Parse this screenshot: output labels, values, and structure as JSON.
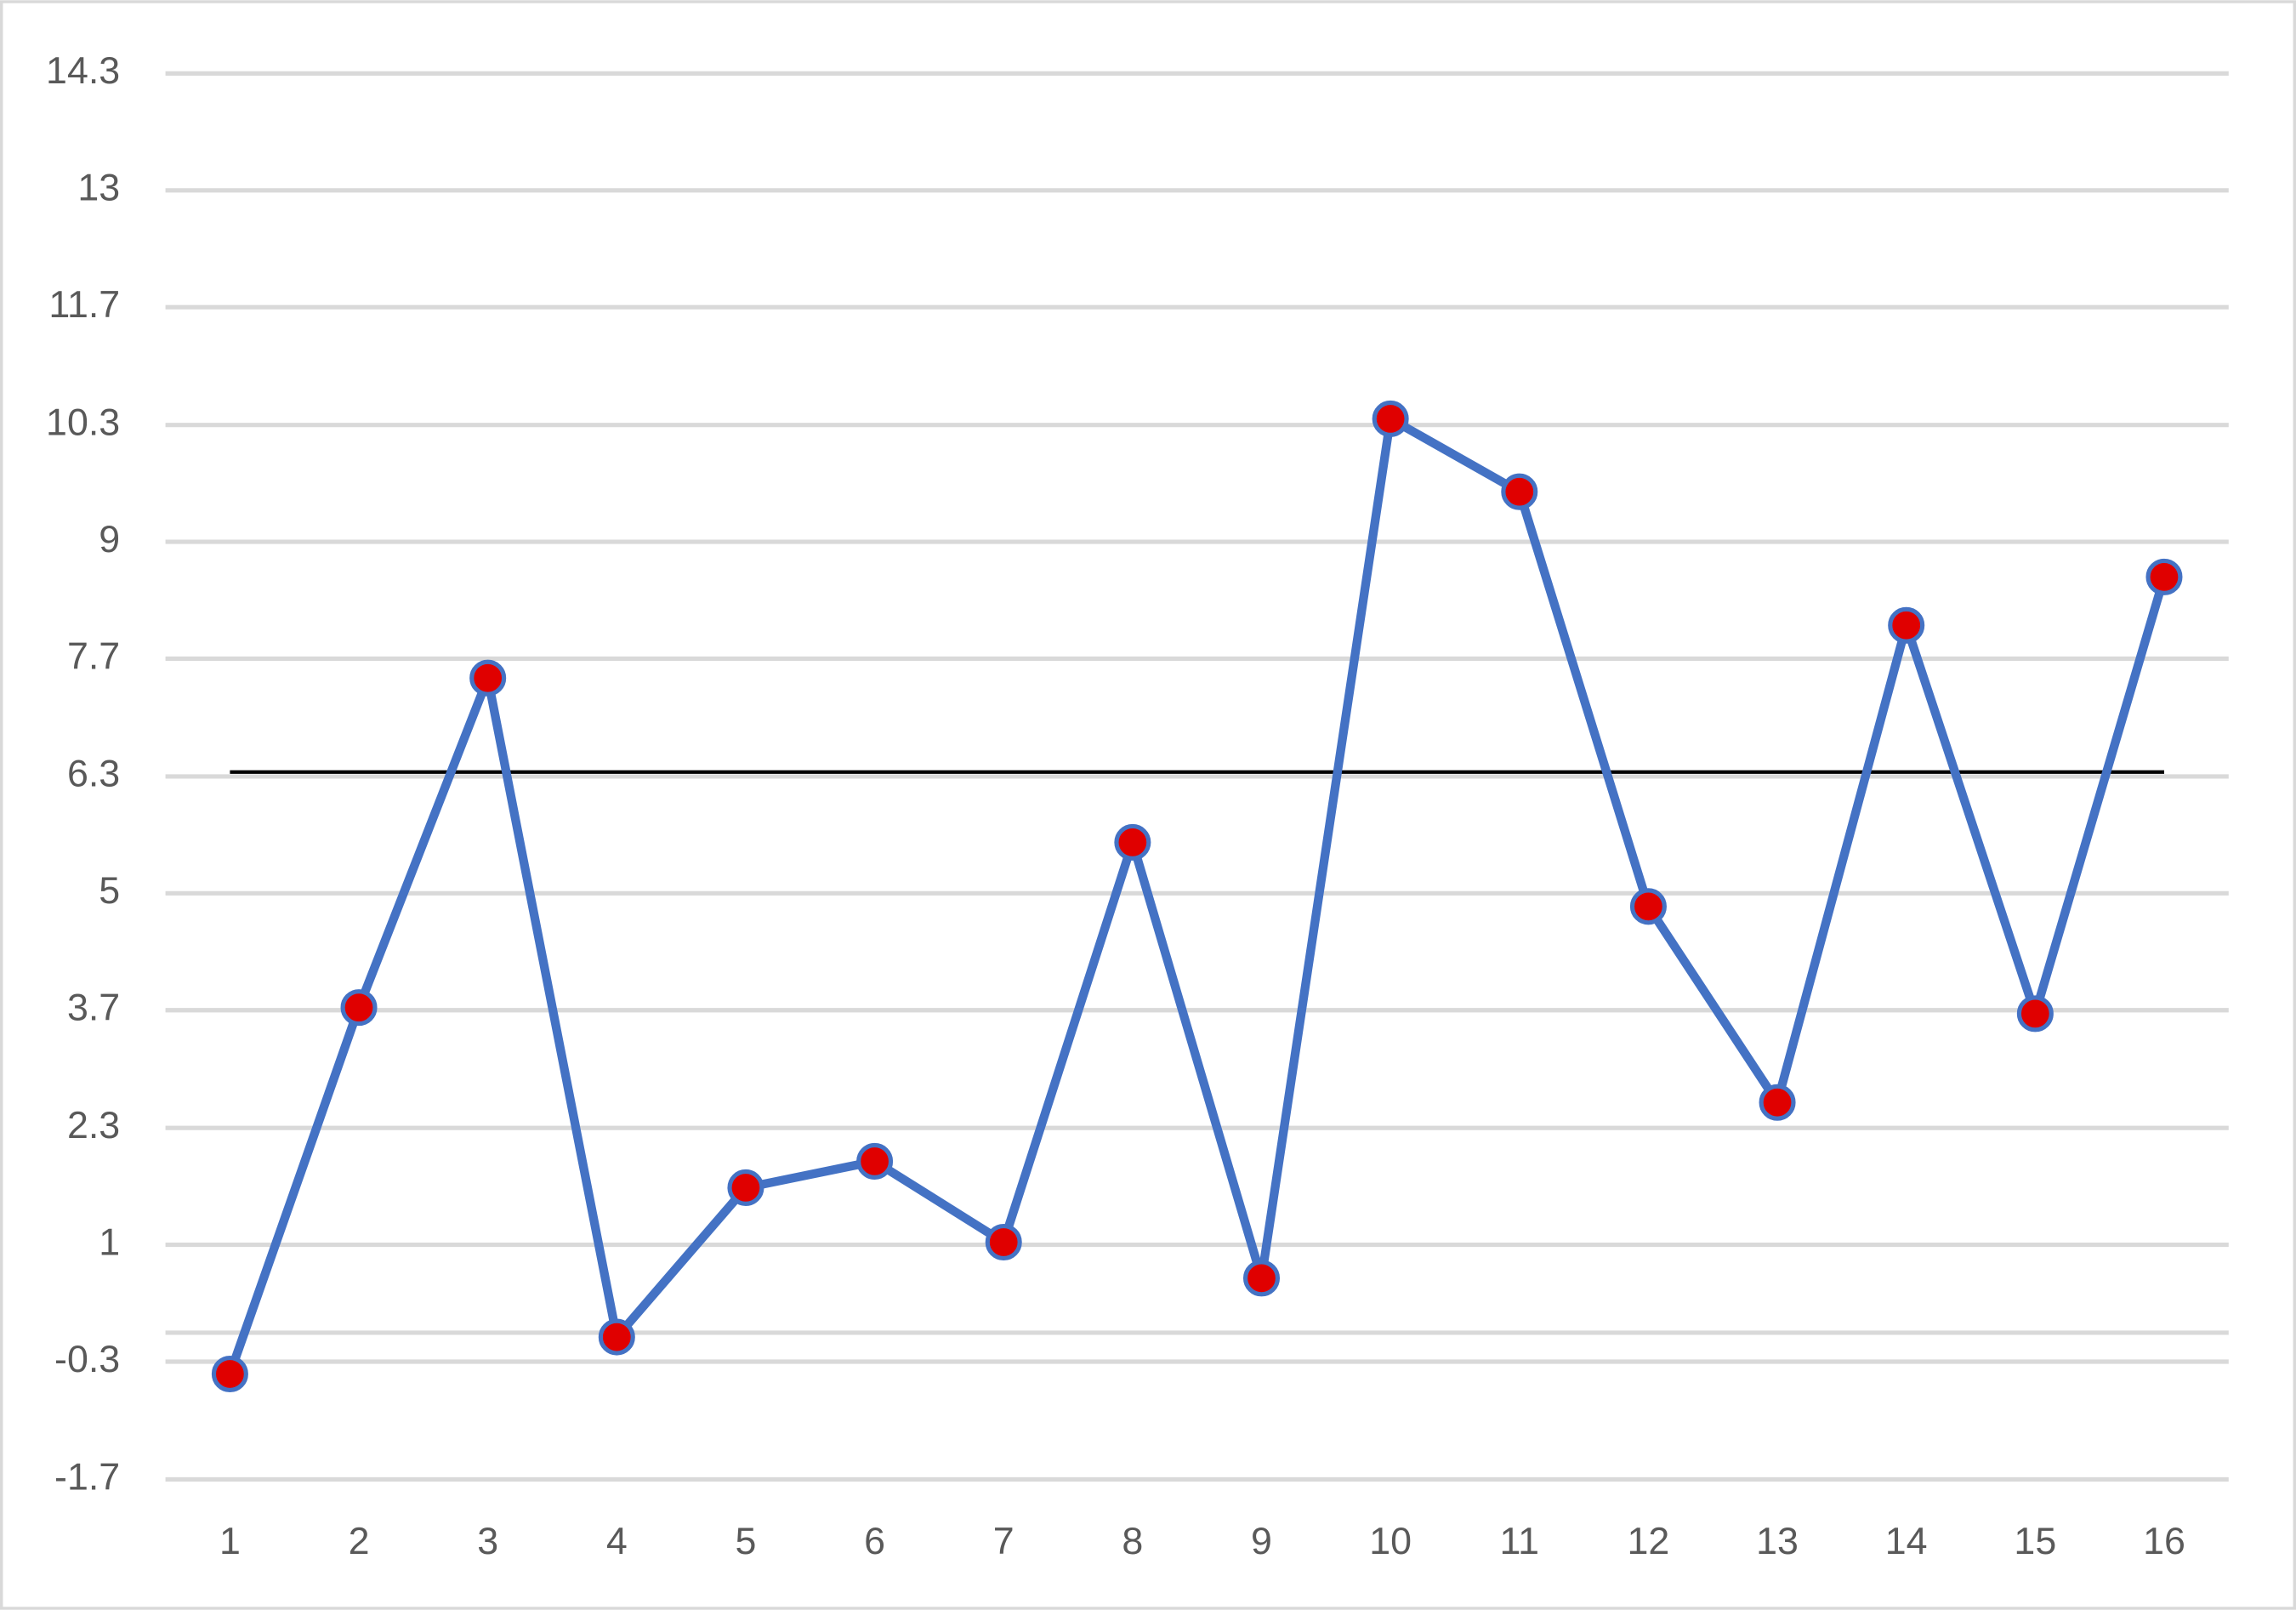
{
  "chart_data": {
    "type": "line",
    "categories": [
      "1",
      "2",
      "3",
      "4",
      "5",
      "6",
      "7",
      "8",
      "9",
      "10",
      "11",
      "12",
      "13",
      "14",
      "15",
      "16"
    ],
    "series": [
      {
        "color": "#4472c4",
        "marker_color": "#e00000",
        "values": [
          -0.47,
          3.7,
          7.45,
          -0.05,
          1.65,
          1.95,
          1.03,
          5.58,
          0.62,
          10.4,
          9.57,
          4.85,
          2.62,
          8.05,
          3.63,
          8.6
        ]
      }
    ],
    "reference_line": {
      "value": 6.38,
      "color": "#000000"
    },
    "ylim": [
      -1.67,
      14.33
    ],
    "yticks": [
      {
        "value": -1.67,
        "label": "-1.7"
      },
      {
        "value": -0.33,
        "label": "-0.3"
      },
      1.0,
      {
        "value": 2.33,
        "label": "2.3"
      },
      {
        "value": 3.67,
        "label": "3.7"
      },
      5.0,
      {
        "value": 6.33,
        "label": "6.3"
      },
      {
        "value": 7.67,
        "label": "7.7"
      },
      9.0,
      {
        "value": 10.33,
        "label": "10.3"
      },
      {
        "value": 11.67,
        "label": "11.7"
      },
      13.0,
      {
        "value": 14.33,
        "label": "14.3"
      }
    ],
    "grid": true
  }
}
